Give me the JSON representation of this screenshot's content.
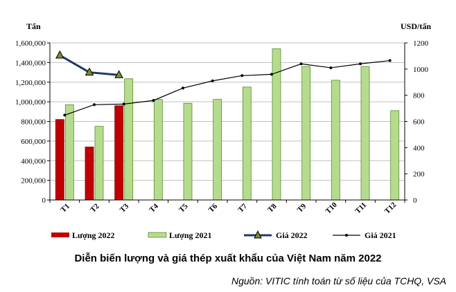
{
  "chart_data": {
    "type": "bar",
    "title": "Diễn biến lượng và giá thép xuất khẩu của Việt Nam năm 2022",
    "source": "Nguồn: VITIC tính toán từ số liệu của TCHQ, VSA",
    "left_axis_label": "Tấn",
    "right_axis_label": "USD/tấn",
    "categories": [
      "T1",
      "T2",
      "T3",
      "T4",
      "T5",
      "T6",
      "T7",
      "T8",
      "T9",
      "T10",
      "T11",
      "T12"
    ],
    "left_ylim": [
      0,
      1600000
    ],
    "right_ylim": [
      0,
      1200
    ],
    "left_ticks": [
      "0",
      "200,000",
      "400,000",
      "600,000",
      "800,000",
      "1,000,000",
      "1,200,000",
      "1,400,000",
      "1,600,000"
    ],
    "right_ticks": [
      "0",
      "200",
      "400",
      "600",
      "800",
      "1000",
      "1200"
    ],
    "series": [
      {
        "name": "Lượng 2022",
        "type": "bar",
        "axis": "left",
        "color": "#c00000",
        "values": [
          820000,
          540000,
          960000,
          null,
          null,
          null,
          null,
          null,
          null,
          null,
          null,
          null
        ]
      },
      {
        "name": "Lượng 2021",
        "type": "bar",
        "axis": "left",
        "color": "#b5dc8e",
        "values": [
          970000,
          750000,
          1235000,
          1025000,
          985000,
          1025000,
          1150000,
          1540000,
          1360000,
          1220000,
          1360000,
          910000
        ]
      },
      {
        "name": "Giá 2022",
        "type": "line",
        "axis": "right",
        "color": "#1f3864",
        "values": [
          1105,
          975,
          955,
          null,
          null,
          null,
          null,
          null,
          null,
          null,
          null,
          null
        ]
      },
      {
        "name": "Giá 2021",
        "type": "line",
        "axis": "right",
        "color": "#000000",
        "values": [
          648,
          728,
          733,
          760,
          855,
          910,
          950,
          960,
          1040,
          1010,
          1040,
          1065
        ]
      }
    ]
  }
}
